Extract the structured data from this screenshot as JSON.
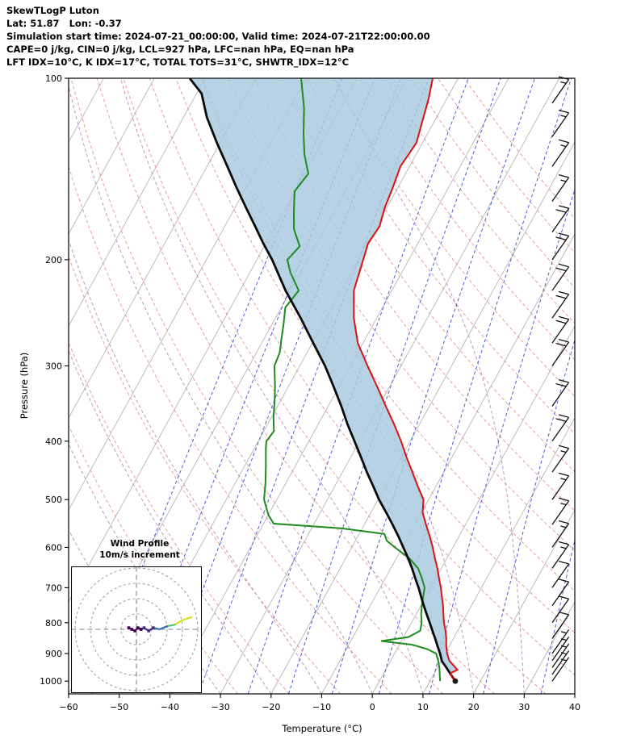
{
  "header": {
    "title": "SkewTLogP Luton",
    "location": "Lat: 51.87   Lon: -0.37",
    "sim_time": "Simulation start time: 2024-07-21_00:00:00, Valid time: 2024-07-21T22:00:00.00",
    "indices1": "CAPE=0 j/kg, CIN=0 j/kg, LCL=927 hPa, LFC=nan hPa, EQ=nan hPa",
    "indices2": "LFT IDX=10°C, K IDX=17°C, TOTAL TOTS=31°C, SHWTR_IDX=12°C"
  },
  "chart_data": {
    "type": "line",
    "diagram": "skew-t-log-p",
    "x_axis": {
      "label": "Temperature (°C)",
      "ticks": [
        -60,
        -50,
        -40,
        -30,
        -20,
        -10,
        0,
        10,
        20,
        30,
        40
      ],
      "min": -60,
      "max": 40
    },
    "y_axis": {
      "label": "Pressure (hPa)",
      "ticks": [
        100,
        200,
        300,
        400,
        500,
        600,
        700,
        800,
        900,
        1000
      ],
      "min": 100,
      "max": 1050,
      "scale": "log"
    },
    "skew": 0.55,
    "colors": {
      "temperature": "#e01010",
      "dewpoint": "#1f8b1f",
      "parcel": "#0a0a0a",
      "fill": "#a9cadf",
      "isotherm": "#b5b5b5",
      "dry_adiabat": "#e59494",
      "moist_adiabat": "#b78ac2",
      "mixing_ratio": "#4d52d0",
      "barb": "#111111"
    },
    "series": [
      {
        "name": "temperature",
        "points": [
          [
            1000,
            15.0
          ],
          [
            985,
            13.9
          ],
          [
            970,
            13.2
          ],
          [
            958,
            14.2
          ],
          [
            945,
            13.2
          ],
          [
            925,
            11.6
          ],
          [
            900,
            10.4
          ],
          [
            875,
            9.4
          ],
          [
            850,
            8.6
          ],
          [
            825,
            7.6
          ],
          [
            800,
            6.4
          ],
          [
            775,
            5.4
          ],
          [
            750,
            4.4
          ],
          [
            725,
            3.2
          ],
          [
            700,
            2.0
          ],
          [
            675,
            0.6
          ],
          [
            650,
            -0.8
          ],
          [
            625,
            -2.4
          ],
          [
            600,
            -4.0
          ],
          [
            575,
            -5.8
          ],
          [
            550,
            -7.8
          ],
          [
            525,
            -9.8
          ],
          [
            500,
            -11.0
          ],
          [
            475,
            -13.6
          ],
          [
            450,
            -16.2
          ],
          [
            425,
            -19.0
          ],
          [
            400,
            -21.8
          ],
          [
            375,
            -25.0
          ],
          [
            350,
            -28.6
          ],
          [
            325,
            -32.4
          ],
          [
            300,
            -36.6
          ],
          [
            275,
            -41.0
          ],
          [
            250,
            -44.5
          ],
          [
            225,
            -47.5
          ],
          [
            200,
            -49.0
          ],
          [
            188,
            -49.8
          ],
          [
            176,
            -49.4
          ],
          [
            164,
            -50.4
          ],
          [
            152,
            -51.0
          ],
          [
            140,
            -51.8
          ],
          [
            128,
            -51.2
          ],
          [
            116,
            -52.6
          ],
          [
            108,
            -53.6
          ],
          [
            100,
            -55.0
          ]
        ]
      },
      {
        "name": "dewpoint",
        "points": [
          [
            1000,
            12.0
          ],
          [
            975,
            11.2
          ],
          [
            950,
            10.4
          ],
          [
            925,
            9.4
          ],
          [
            900,
            8.2
          ],
          [
            885,
            6.0
          ],
          [
            870,
            2.5
          ],
          [
            858,
            -4.0
          ],
          [
            845,
            1.0
          ],
          [
            825,
            2.6
          ],
          [
            800,
            2.0
          ],
          [
            775,
            1.0
          ],
          [
            750,
            0.2
          ],
          [
            725,
            -0.5
          ],
          [
            700,
            -1.2
          ],
          [
            675,
            -2.8
          ],
          [
            650,
            -4.6
          ],
          [
            625,
            -7.5
          ],
          [
            600,
            -11.5
          ],
          [
            585,
            -13.8
          ],
          [
            570,
            -15.0
          ],
          [
            558,
            -24.0
          ],
          [
            548,
            -38.0
          ],
          [
            530,
            -40.0
          ],
          [
            500,
            -42.5
          ],
          [
            470,
            -44.0
          ],
          [
            440,
            -45.8
          ],
          [
            410,
            -47.8
          ],
          [
            400,
            -48.4
          ],
          [
            385,
            -48.0
          ],
          [
            365,
            -49.6
          ],
          [
            345,
            -51.0
          ],
          [
            325,
            -52.6
          ],
          [
            300,
            -55.0
          ],
          [
            285,
            -55.4
          ],
          [
            270,
            -56.6
          ],
          [
            255,
            -57.8
          ],
          [
            240,
            -59.2
          ],
          [
            225,
            -58.4
          ],
          [
            210,
            -62.0
          ],
          [
            200,
            -64.0
          ],
          [
            190,
            -63.0
          ],
          [
            178,
            -66.0
          ],
          [
            166,
            -68.0
          ],
          [
            154,
            -70.0
          ],
          [
            144,
            -69.2
          ],
          [
            134,
            -72.0
          ],
          [
            124,
            -74.4
          ],
          [
            112,
            -77.2
          ],
          [
            100,
            -81.0
          ]
        ]
      },
      {
        "name": "parcel",
        "points": [
          [
            1000,
            15.0
          ],
          [
            975,
            13.4
          ],
          [
            950,
            11.8
          ],
          [
            927,
            10.2
          ],
          [
            900,
            9.0
          ],
          [
            875,
            7.7
          ],
          [
            850,
            6.4
          ],
          [
            825,
            5.0
          ],
          [
            800,
            3.6
          ],
          [
            775,
            2.1
          ],
          [
            750,
            0.6
          ],
          [
            725,
            -0.9
          ],
          [
            700,
            -2.4
          ],
          [
            675,
            -4.1
          ],
          [
            650,
            -5.8
          ],
          [
            625,
            -7.7
          ],
          [
            600,
            -9.8
          ],
          [
            575,
            -12.0
          ],
          [
            550,
            -14.4
          ],
          [
            525,
            -17.0
          ],
          [
            500,
            -19.8
          ],
          [
            475,
            -22.4
          ],
          [
            450,
            -25.2
          ],
          [
            425,
            -28.0
          ],
          [
            400,
            -31.0
          ],
          [
            375,
            -34.2
          ],
          [
            350,
            -37.4
          ],
          [
            325,
            -41.0
          ],
          [
            300,
            -45.0
          ],
          [
            275,
            -49.8
          ],
          [
            250,
            -55.0
          ],
          [
            225,
            -61.0
          ],
          [
            200,
            -67.0
          ],
          [
            188,
            -70.5
          ],
          [
            176,
            -74.0
          ],
          [
            164,
            -77.8
          ],
          [
            152,
            -81.8
          ],
          [
            140,
            -86.0
          ],
          [
            128,
            -90.6
          ],
          [
            116,
            -95.4
          ],
          [
            106,
            -99.0
          ],
          [
            100,
            -103.0
          ]
        ]
      }
    ],
    "surface_marker": {
      "p": 1000,
      "t": 15.0
    },
    "fill_between": {
      "from": "parcel",
      "to": "temperature",
      "opacity": 0.85
    },
    "background": {
      "isotherms": {
        "min": -130,
        "max": 40,
        "step": 10
      },
      "dry_adiabats_theta_c": [
        -30,
        -20,
        -10,
        0,
        10,
        20,
        30,
        40,
        50,
        60,
        70,
        80,
        90,
        100,
        110,
        120,
        130,
        140,
        150,
        160
      ],
      "moist_adiabats_thetaw_c": [
        -40,
        -30,
        -20,
        -10,
        0,
        10,
        20,
        30
      ],
      "mixing_ratio_g_kg": [
        0.02,
        0.05,
        0.1,
        0.2,
        0.5,
        1,
        2,
        4,
        8,
        16,
        32
      ]
    },
    "wind_barbs": [
      [
        110,
        13
      ],
      [
        125,
        15
      ],
      [
        140,
        15
      ],
      [
        160,
        17
      ],
      [
        180,
        18
      ],
      [
        200,
        18
      ],
      [
        225,
        20
      ],
      [
        250,
        20
      ],
      [
        275,
        20
      ],
      [
        300,
        20
      ],
      [
        350,
        18
      ],
      [
        400,
        18
      ],
      [
        450,
        17
      ],
      [
        500,
        15
      ],
      [
        550,
        15
      ],
      [
        600,
        13
      ],
      [
        650,
        13
      ],
      [
        700,
        12
      ],
      [
        750,
        10
      ],
      [
        800,
        10
      ],
      [
        850,
        8
      ],
      [
        900,
        7
      ],
      [
        925,
        5
      ],
      [
        950,
        5
      ],
      [
        975,
        4
      ],
      [
        1000,
        3
      ]
    ],
    "hodograph": {
      "title": "Wind Profile",
      "subtitle": "10m/s increment",
      "ring_increment_ms": 10,
      "rings": [
        10,
        20,
        30,
        40
      ],
      "segments": [
        {
          "color": "#d8e219",
          "pts": [
            [
              36,
              8
            ],
            [
              30,
              6
            ],
            [
              25,
              3
            ]
          ],
          "markers": false
        },
        {
          "color": "#54c568",
          "pts": [
            [
              25,
              3
            ],
            [
              20,
              2
            ]
          ],
          "markers": false
        },
        {
          "color": "#3a6fb0",
          "pts": [
            [
              20,
              2
            ],
            [
              15,
              0
            ],
            [
              11,
              1
            ]
          ],
          "markers": false
        },
        {
          "color": "#472f7d",
          "pts": [
            [
              11,
              1
            ],
            [
              8,
              -1
            ],
            [
              5,
              1
            ],
            [
              3,
              0
            ]
          ],
          "markers": true
        },
        {
          "color": "#440154",
          "pts": [
            [
              3,
              0
            ],
            [
              1,
              1
            ],
            [
              -1,
              -1
            ],
            [
              -3,
              0
            ],
            [
              -5,
              1
            ]
          ],
          "markers": true
        }
      ]
    }
  }
}
